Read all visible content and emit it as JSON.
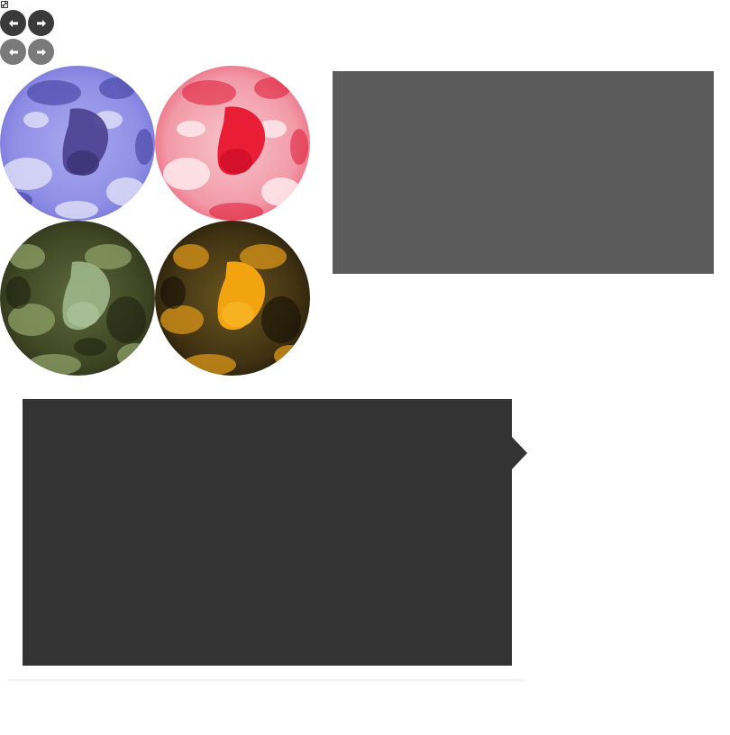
{
  "icons": {
    "expand": "expand-icon",
    "prev": "arrow-left-icon",
    "next": "arrow-right-icon"
  },
  "colors": {
    "nav_dark": "#3a3a3a",
    "nav_grey": "#7a7a7a",
    "panel_grey": "#5b5b5b",
    "panel_dark": "#333333",
    "variant_blue": "#6b6ad8",
    "variant_red": "#e8203a",
    "variant_green": "#7f9a5f",
    "variant_amber": "#f2a410"
  },
  "images": [
    {
      "name": "image-blue",
      "tint": "blue"
    },
    {
      "name": "image-red",
      "tint": "red"
    },
    {
      "name": "image-green",
      "tint": "green"
    },
    {
      "name": "image-amber",
      "tint": "amber"
    }
  ]
}
